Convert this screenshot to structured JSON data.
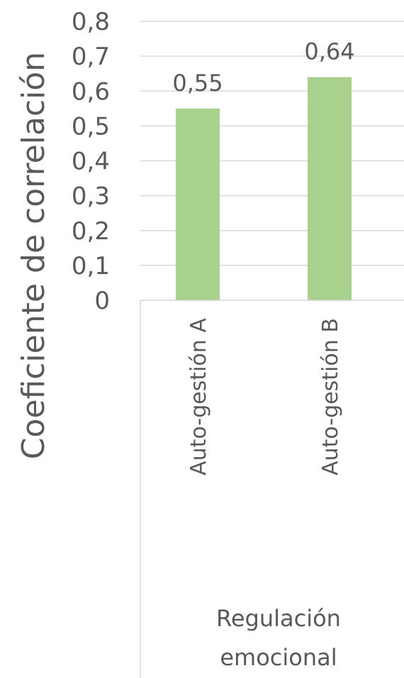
{
  "chart_data": {
    "type": "bar",
    "categories": [
      "Auto-gestión A",
      "Auto-gestión B"
    ],
    "values": [
      0.55,
      0.64
    ],
    "data_labels": [
      "0,55",
      "0,64"
    ],
    "ylabel": "Coeficiente de correlación",
    "group_label": [
      "Regulación",
      "emocional"
    ],
    "ylim": [
      0,
      0.8
    ],
    "yticks": [
      0,
      0.1,
      0.2,
      0.3,
      0.4,
      0.5,
      0.6,
      0.7,
      0.8
    ],
    "ytick_labels": [
      "0",
      "0,1",
      "0,2",
      "0,3",
      "0,4",
      "0,5",
      "0,6",
      "0,7",
      "0,8"
    ],
    "bar_color": "#a9d18e",
    "grid": true,
    "legend": "none"
  }
}
